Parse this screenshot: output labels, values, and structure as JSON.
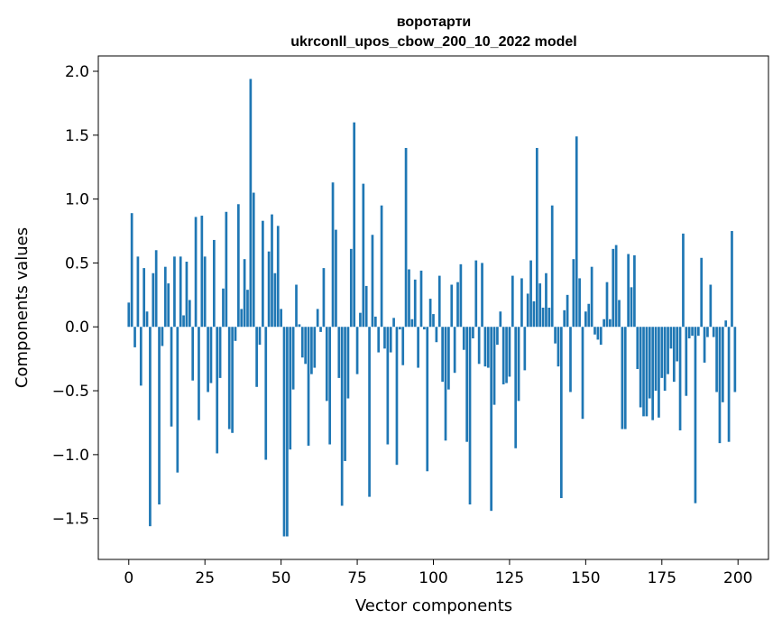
{
  "chart_data": {
    "type": "bar",
    "title": "воротарти",
    "subtitle": "ukrconll_upos_cbow_200_10_2022 model",
    "xlabel": "Vector components",
    "ylabel": "Components values",
    "xlim": [
      -10,
      210
    ],
    "ylim": [
      -1.82,
      2.12
    ],
    "xticks": [
      0,
      25,
      50,
      75,
      100,
      125,
      150,
      175,
      200
    ],
    "yticks": [
      -1.5,
      -1.0,
      -0.5,
      0.0,
      0.5,
      1.0,
      1.5,
      2.0
    ],
    "ytick_labels": [
      "−1.5",
      "−1.0",
      "−0.5",
      "0.0",
      "0.5",
      "1.0",
      "1.5",
      "2.0"
    ],
    "grid": false,
    "bar_color": "#1f77b4",
    "values": [
      0.19,
      0.89,
      -0.16,
      0.55,
      -0.46,
      0.46,
      0.12,
      -1.56,
      0.42,
      0.6,
      -1.39,
      -0.15,
      0.47,
      0.34,
      -0.78,
      0.55,
      -1.14,
      0.55,
      0.09,
      0.51,
      0.21,
      -0.42,
      0.86,
      -0.73,
      0.87,
      0.55,
      -0.51,
      -0.44,
      0.68,
      -0.99,
      -0.4,
      0.3,
      0.9,
      -0.8,
      -0.83,
      -0.11,
      0.96,
      0.14,
      0.53,
      0.29,
      1.94,
      1.05,
      -0.47,
      -0.14,
      0.83,
      -1.04,
      0.59,
      0.88,
      0.42,
      0.79,
      0.14,
      -1.64,
      -1.64,
      -0.96,
      -0.49,
      0.33,
      0.02,
      -0.24,
      -0.29,
      -0.93,
      -0.37,
      -0.32,
      0.14,
      -0.04,
      0.46,
      -0.58,
      -0.92,
      1.13,
      0.76,
      -0.4,
      -1.4,
      -1.05,
      -0.56,
      0.61,
      1.6,
      -0.37,
      0.11,
      1.12,
      0.32,
      -1.33,
      0.72,
      0.08,
      -0.2,
      0.95,
      -0.17,
      -0.92,
      -0.2,
      0.07,
      -1.08,
      -0.02,
      -0.3,
      1.4,
      0.45,
      0.06,
      0.37,
      -0.32,
      0.44,
      -0.02,
      -1.13,
      0.22,
      0.1,
      -0.12,
      0.4,
      -0.43,
      -0.89,
      -0.49,
      0.33,
      -0.36,
      0.35,
      0.49,
      -0.18,
      -0.9,
      -1.39,
      -0.09,
      0.52,
      -0.29,
      0.5,
      -0.31,
      -0.32,
      -1.44,
      -0.61,
      -0.14,
      0.12,
      -0.45,
      -0.44,
      -0.39,
      0.4,
      -0.95,
      -0.58,
      0.38,
      -0.34,
      0.26,
      0.52,
      0.2,
      1.4,
      0.34,
      0.15,
      0.42,
      0.15,
      0.95,
      -0.13,
      -0.31,
      -1.34,
      0.13,
      0.25,
      -0.51,
      0.53,
      1.49,
      0.38,
      -0.72,
      0.12,
      0.18,
      0.47,
      -0.06,
      -0.1,
      -0.14,
      0.06,
      0.35,
      0.06,
      0.61,
      0.64,
      0.21,
      -0.8,
      -0.8,
      0.57,
      0.31,
      0.56,
      -0.33,
      -0.63,
      -0.7,
      -0.7,
      -0.56,
      -0.73,
      -0.5,
      -0.71,
      -0.4,
      -0.5,
      -0.37,
      -0.17,
      -0.43,
      -0.27,
      -0.81,
      0.73,
      -0.54,
      -0.09,
      -0.07,
      -1.38,
      -0.07,
      0.54,
      -0.28,
      -0.08,
      0.33,
      -0.08,
      -0.51,
      -0.91,
      -0.59,
      0.05,
      -0.9,
      0.75,
      -0.51
    ]
  }
}
